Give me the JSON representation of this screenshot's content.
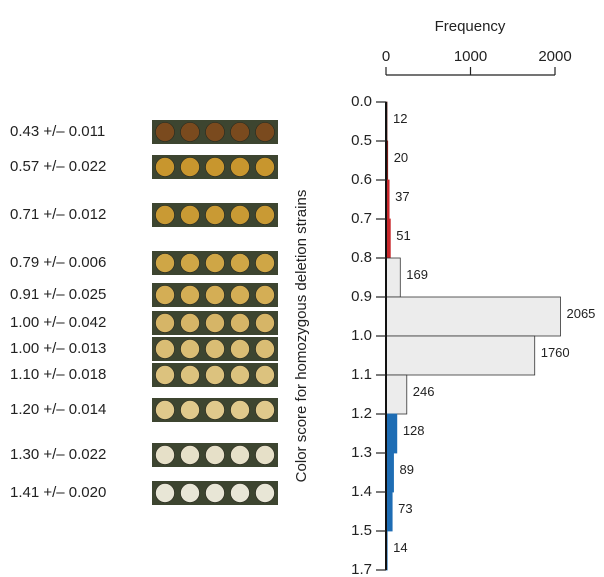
{
  "chart_data": {
    "type": "histogram",
    "xlabel": "Frequency",
    "ylabel": "Color score for homozygous deletion strains",
    "xlim": [
      0,
      2000
    ],
    "xticks": [
      0,
      1000,
      2000
    ],
    "bin_edges": [
      "0.0",
      "0.5",
      "0.6",
      "0.7",
      "0.8",
      "0.9",
      "1.0",
      "1.1",
      "1.2",
      "1.3",
      "1.4",
      "1.5",
      "1.7"
    ],
    "counts": [
      12,
      20,
      37,
      51,
      169,
      2065,
      1760,
      246,
      128,
      89,
      73,
      14
    ],
    "colors": [
      "#5a1a14",
      "#7a1e1a",
      "#c8282c",
      "#c8282c",
      "#ececec",
      "#ececec",
      "#ececec",
      "#ececec",
      "#1e6db4",
      "#1e6db4",
      "#1e6db4",
      "#1e6db4"
    ],
    "strips": [
      {
        "label": "0.43 +/– 0.011",
        "color": "#7a4a1e"
      },
      {
        "label": "0.57 +/– 0.022",
        "color": "#c8962e"
      },
      {
        "label": "0.71 +/– 0.012",
        "color": "#c99a34"
      },
      {
        "label": "0.79 +/– 0.006",
        "color": "#cfa646"
      },
      {
        "label": "0.91 +/– 0.025",
        "color": "#d4ae55"
      },
      {
        "label": "1.00 +/– 0.042",
        "color": "#d6b567"
      },
      {
        "label": "1.00 +/– 0.013",
        "color": "#dabd74"
      },
      {
        "label": "1.10 +/– 0.018",
        "color": "#dcc27e"
      },
      {
        "label": "1.20 +/– 0.014",
        "color": "#e0c98c"
      },
      {
        "label": "1.30 +/– 0.022",
        "color": "#e6e0c8"
      },
      {
        "label": "1.41 +/– 0.020",
        "color": "#e8e6d6"
      }
    ]
  }
}
